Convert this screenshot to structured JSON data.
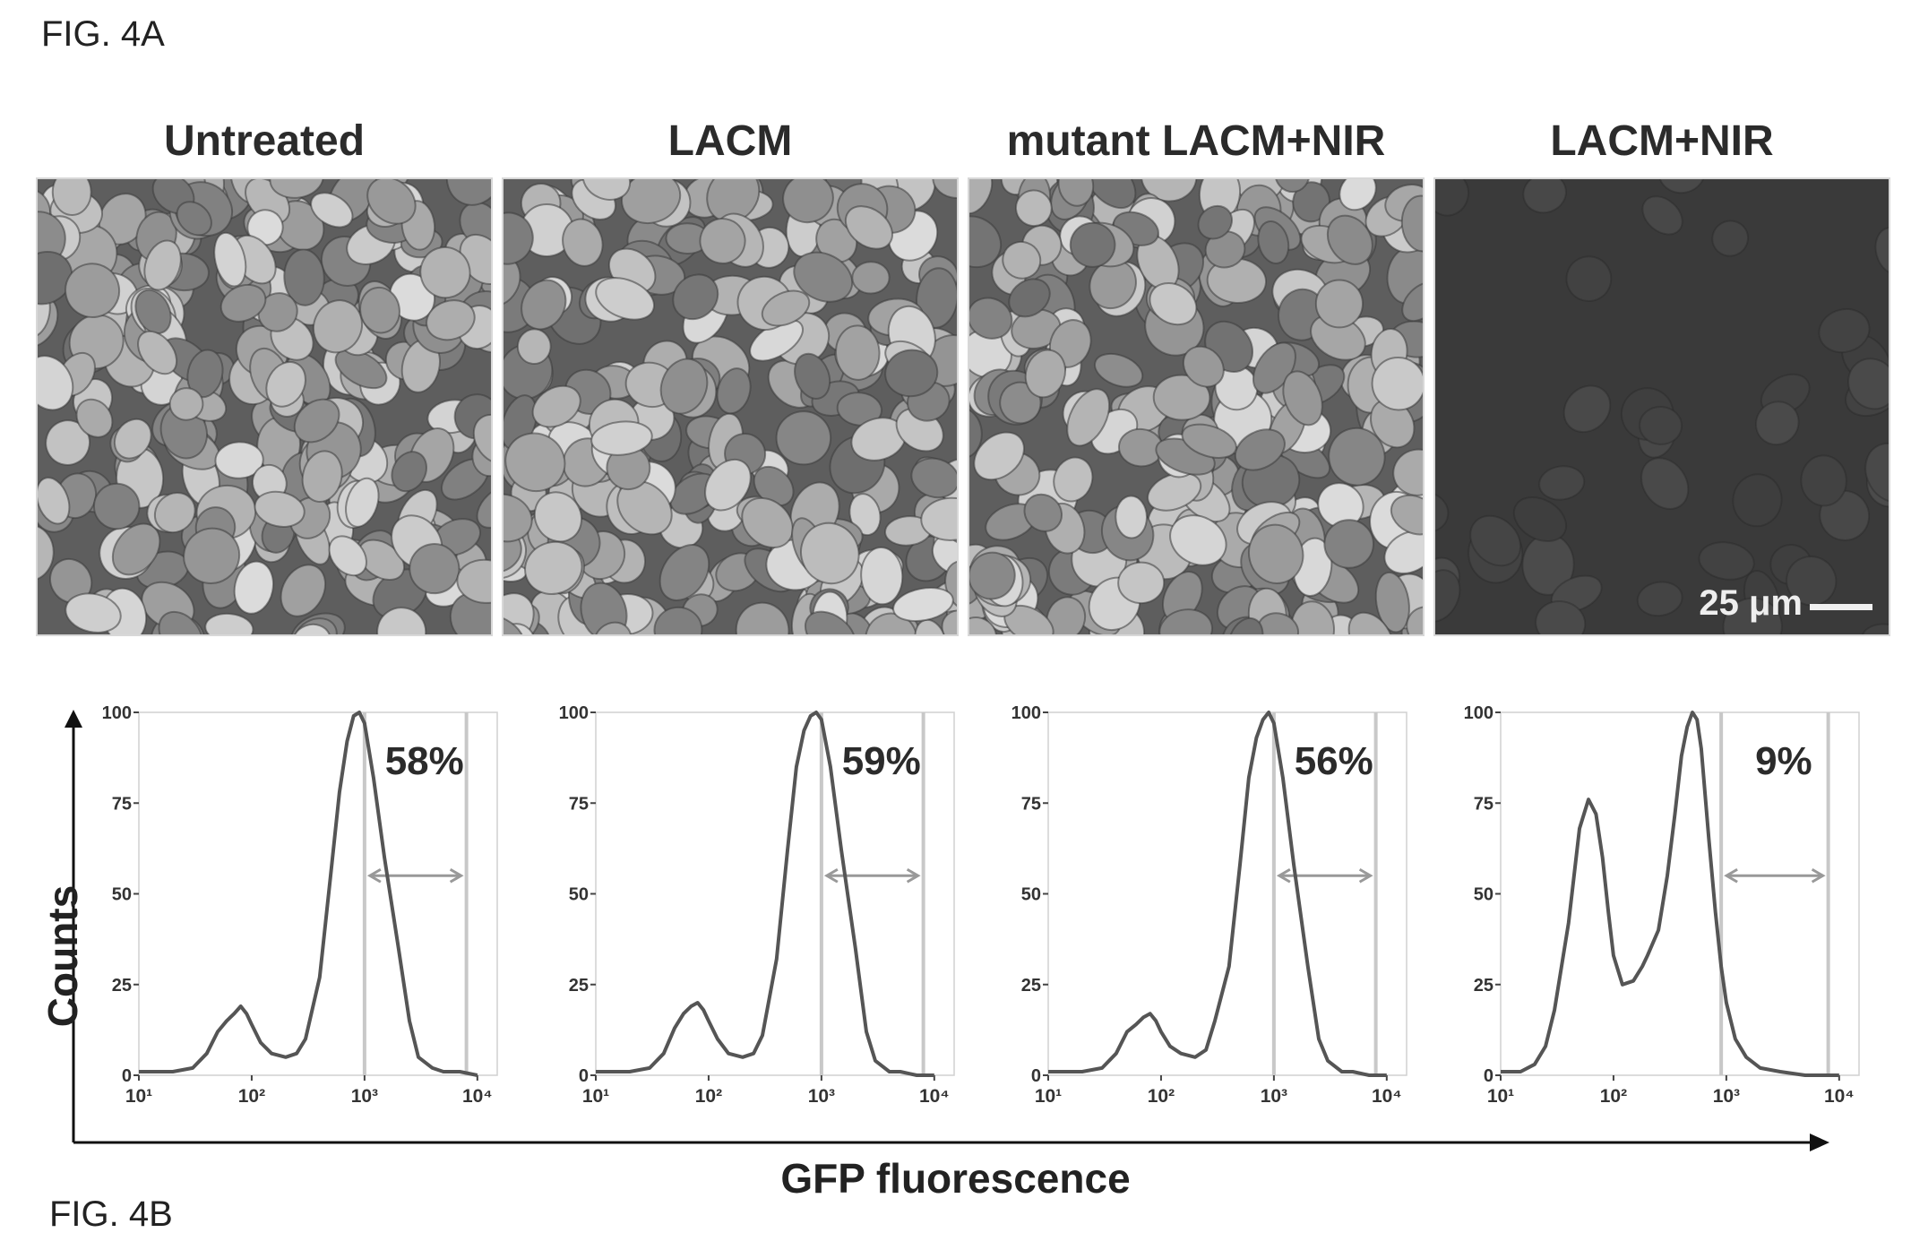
{
  "figure_labels": {
    "top": "FIG. 4A",
    "bottom": "FIG. 4B"
  },
  "panels": [
    {
      "title": "Untreated",
      "bright": true
    },
    {
      "title": "LACM",
      "bright": true
    },
    {
      "title": "mutant LACM+NIR",
      "bright": true
    },
    {
      "title": "LACM+NIR",
      "bright": false
    }
  ],
  "scale_bar_label": "25 μm",
  "axis_titles": {
    "y": "Counts",
    "x": "GFP fluorescence"
  },
  "colors": {
    "histogram_line": "#555555",
    "gate_line": "#c8c8c8",
    "arrow": "#999999"
  },
  "chart_data": [
    {
      "type": "line",
      "xscale": "log",
      "xlim": [
        10,
        15000
      ],
      "ylim": [
        0,
        100
      ],
      "x_ticks": [
        "10¹",
        "10²",
        "10³",
        "10⁴"
      ],
      "y_ticks": [
        "0",
        "25",
        "50",
        "75",
        "100"
      ],
      "gate": [
        1000,
        8000
      ],
      "annotation": "58%",
      "x": [
        10,
        15,
        20,
        30,
        40,
        50,
        60,
        70,
        80,
        90,
        100,
        120,
        150,
        200,
        250,
        300,
        400,
        500,
        600,
        700,
        800,
        900,
        1000,
        1200,
        1500,
        2000,
        2500,
        3000,
        4000,
        5000,
        7000,
        10000
      ],
      "y": [
        1,
        1,
        1,
        2,
        6,
        12,
        15,
        17,
        19,
        17,
        14,
        9,
        6,
        5,
        6,
        10,
        27,
        55,
        78,
        92,
        99,
        100,
        97,
        82,
        60,
        35,
        15,
        5,
        2,
        1,
        1,
        0
      ]
    },
    {
      "type": "line",
      "xscale": "log",
      "xlim": [
        10,
        15000
      ],
      "ylim": [
        0,
        100
      ],
      "x_ticks": [
        "10¹",
        "10²",
        "10³",
        "10⁴"
      ],
      "y_ticks": [
        "0",
        "25",
        "50",
        "75",
        "100"
      ],
      "gate": [
        1000,
        8000
      ],
      "annotation": "59%",
      "x": [
        10,
        15,
        20,
        30,
        40,
        50,
        60,
        70,
        80,
        90,
        100,
        120,
        150,
        200,
        250,
        300,
        400,
        500,
        600,
        700,
        800,
        900,
        1000,
        1200,
        1500,
        2000,
        2500,
        3000,
        4000,
        5000,
        7000,
        10000
      ],
      "y": [
        1,
        1,
        1,
        2,
        6,
        13,
        17,
        19,
        20,
        18,
        15,
        10,
        6,
        5,
        6,
        11,
        32,
        62,
        85,
        95,
        99,
        100,
        98,
        85,
        62,
        35,
        12,
        4,
        1,
        1,
        0,
        0
      ]
    },
    {
      "type": "line",
      "xscale": "log",
      "xlim": [
        10,
        15000
      ],
      "ylim": [
        0,
        100
      ],
      "x_ticks": [
        "10¹",
        "10²",
        "10³",
        "10⁴"
      ],
      "y_ticks": [
        "0",
        "25",
        "50",
        "75",
        "100"
      ],
      "gate": [
        1000,
        8000
      ],
      "annotation": "56%",
      "x": [
        10,
        15,
        20,
        30,
        40,
        50,
        60,
        70,
        80,
        90,
        100,
        120,
        150,
        200,
        250,
        300,
        400,
        500,
        600,
        700,
        800,
        900,
        1000,
        1200,
        1500,
        2000,
        2500,
        3000,
        4000,
        5000,
        7000,
        10000
      ],
      "y": [
        1,
        1,
        1,
        2,
        6,
        12,
        14,
        16,
        17,
        15,
        12,
        8,
        6,
        5,
        7,
        15,
        30,
        58,
        82,
        93,
        98,
        100,
        97,
        82,
        58,
        30,
        10,
        4,
        1,
        1,
        0,
        0
      ]
    },
    {
      "type": "line",
      "xscale": "log",
      "xlim": [
        10,
        15000
      ],
      "ylim": [
        0,
        100
      ],
      "x_ticks": [
        "10¹",
        "10²",
        "10³",
        "10⁴"
      ],
      "y_ticks": [
        "0",
        "25",
        "50",
        "75",
        "100"
      ],
      "gate": [
        900,
        8000
      ],
      "annotation": "9%",
      "x": [
        10,
        15,
        20,
        25,
        30,
        40,
        50,
        60,
        70,
        80,
        90,
        100,
        120,
        150,
        180,
        200,
        250,
        300,
        350,
        400,
        450,
        500,
        550,
        600,
        700,
        800,
        900,
        1000,
        1200,
        1500,
        2000,
        3000,
        5000,
        10000
      ],
      "y": [
        1,
        1,
        3,
        8,
        18,
        42,
        68,
        76,
        72,
        60,
        45,
        33,
        25,
        26,
        30,
        33,
        40,
        55,
        72,
        88,
        96,
        100,
        98,
        90,
        65,
        45,
        30,
        20,
        10,
        5,
        2,
        1,
        0,
        0
      ]
    }
  ]
}
